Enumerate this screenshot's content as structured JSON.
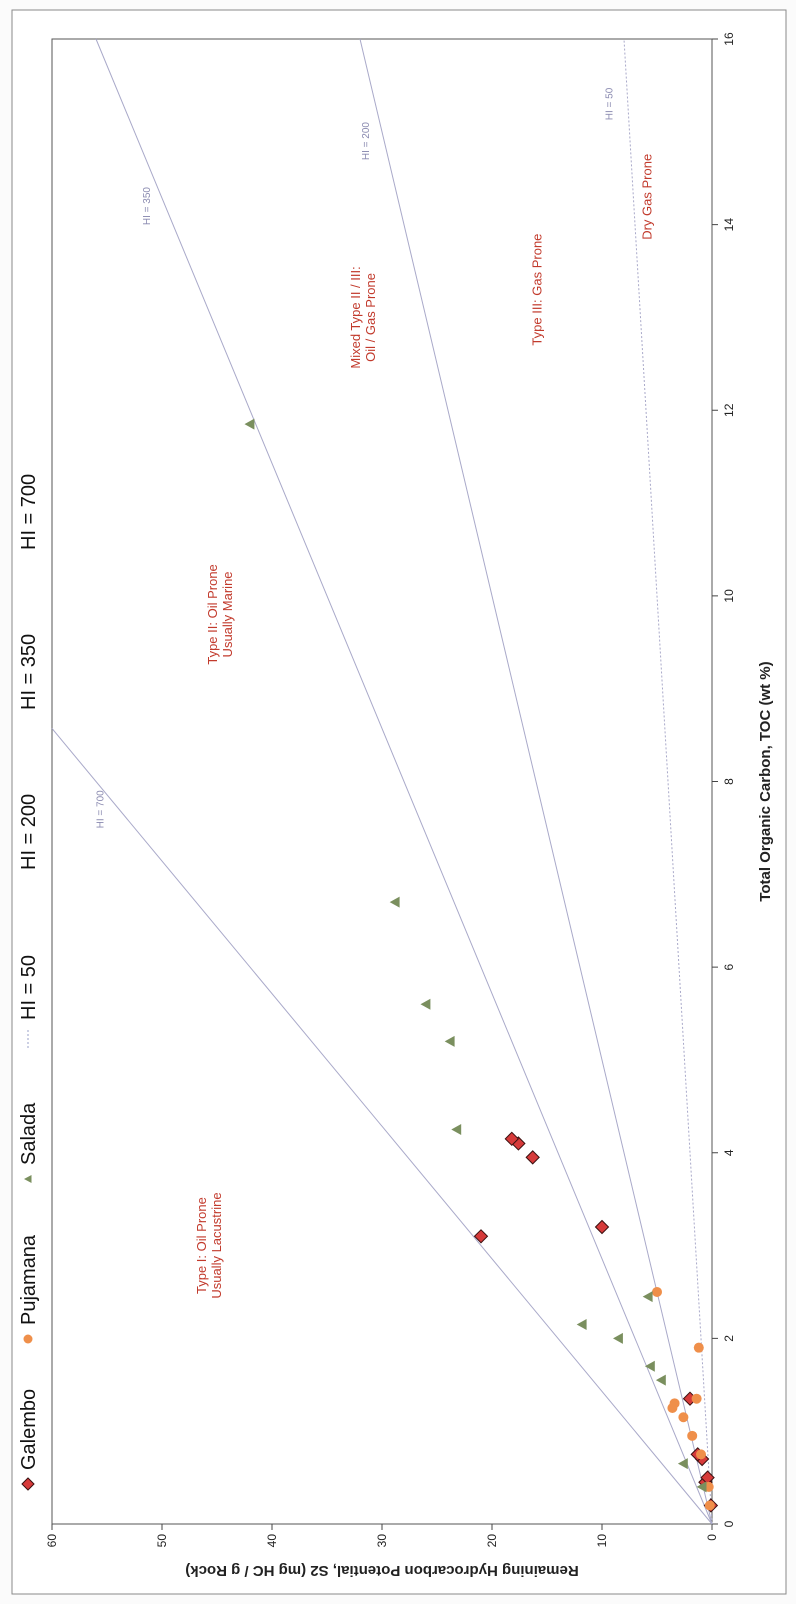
{
  "chart_data": {
    "type": "scatter",
    "xlabel": "Total Organic Carbon, TOC (wt %)",
    "ylabel": "Remaining Hydrocarbon Potential, S2 (mg HC / g Rock)",
    "xlim": [
      0,
      16
    ],
    "ylim": [
      0,
      60
    ],
    "x_ticks": [
      "0",
      "2",
      "4",
      "6",
      "8",
      "10",
      "12",
      "14",
      "16"
    ],
    "y_ticks": [
      "0",
      "10",
      "20",
      "30",
      "40",
      "50",
      "60"
    ],
    "grid": false,
    "legend_position": "top",
    "legend": [
      {
        "label": "Galembo",
        "marker": "diamond"
      },
      {
        "label": "Pujamana",
        "marker": "circle"
      },
      {
        "label": "Salada",
        "marker": "triangle"
      },
      {
        "label": "HI = 50",
        "marker": "dotted-line"
      },
      {
        "label": "HI = 200",
        "marker": "line"
      },
      {
        "label": "HI = 350",
        "marker": "line"
      },
      {
        "label": "HI = 700",
        "marker": "line"
      }
    ],
    "hi_lines": [
      {
        "hi": 50,
        "label": "HI = 50"
      },
      {
        "hi": 200,
        "label": "HI = 200"
      },
      {
        "hi": 350,
        "label": "HI = 350"
      },
      {
        "hi": 700,
        "label": "HI = 700"
      }
    ],
    "regions": [
      {
        "lines": [
          "Type I: Oil Prone",
          "Usually Lacustrine"
        ],
        "x": 3.0,
        "y": 46
      },
      {
        "lines": [
          "Type II: Oil Prone",
          "Usually Marine"
        ],
        "x": 9.8,
        "y": 45
      },
      {
        "lines": [
          "Mixed Type II / III:",
          "Oil / Gas Prone"
        ],
        "x": 13.0,
        "y": 32
      },
      {
        "lines": [
          "Type III: Gas Prone"
        ],
        "x": 13.3,
        "y": 15.5
      },
      {
        "lines": [
          "Dry Gas Prone"
        ],
        "x": 14.3,
        "y": 5.5
      }
    ],
    "series": [
      {
        "name": "Galembo",
        "color": "#d63a3a",
        "marker": "diamond",
        "points": [
          [
            0.2,
            0.1
          ],
          [
            0.45,
            0.6
          ],
          [
            0.5,
            0.4
          ],
          [
            0.7,
            0.9
          ],
          [
            0.75,
            1.3
          ],
          [
            1.35,
            2.0
          ],
          [
            3.1,
            21.0
          ],
          [
            3.2,
            10.0
          ],
          [
            3.95,
            16.3
          ],
          [
            4.1,
            17.6
          ],
          [
            4.15,
            18.2
          ]
        ]
      },
      {
        "name": "Pujamana",
        "color": "#ef8f4a",
        "marker": "circle",
        "points": [
          [
            0.2,
            0.2
          ],
          [
            0.4,
            0.3
          ],
          [
            0.75,
            1.0
          ],
          [
            0.95,
            1.8
          ],
          [
            1.15,
            2.6
          ],
          [
            1.25,
            3.6
          ],
          [
            1.3,
            3.4
          ],
          [
            1.35,
            1.4
          ],
          [
            1.9,
            1.2
          ],
          [
            2.5,
            5.0
          ]
        ]
      },
      {
        "name": "Salada",
        "color": "#7a8f5e",
        "marker": "triangle",
        "points": [
          [
            0.4,
            0.9
          ],
          [
            0.65,
            2.6
          ],
          [
            1.55,
            4.6
          ],
          [
            1.7,
            5.6
          ],
          [
            2.0,
            8.5
          ],
          [
            2.15,
            11.8
          ],
          [
            2.45,
            5.8
          ],
          [
            4.25,
            23.2
          ],
          [
            5.2,
            23.8
          ],
          [
            5.6,
            26.0
          ],
          [
            6.7,
            28.8
          ],
          [
            11.85,
            42.0
          ]
        ]
      }
    ]
  }
}
